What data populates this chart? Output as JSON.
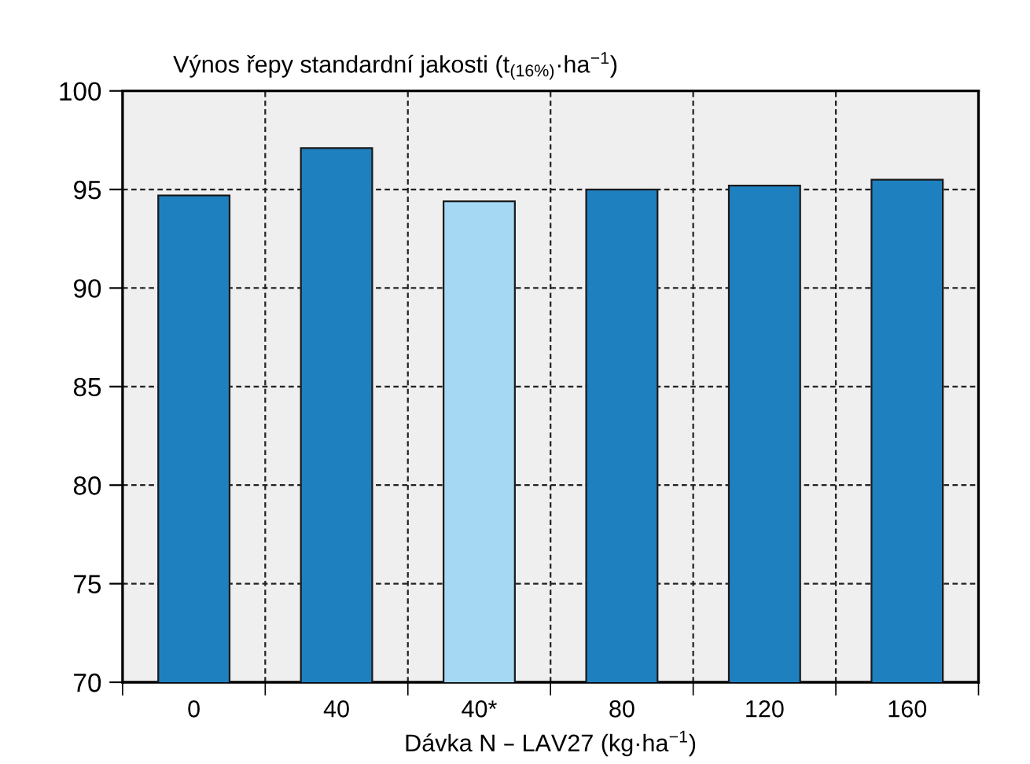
{
  "chart_data": {
    "type": "bar",
    "ylabel": "Výnos řepy standardní jakosti (t$_{(16%)}$·ha$^{−1}$)",
    "xlabel": "Dávka N – LAV27 (kg·ha$^{−1}$)",
    "categories": [
      "0",
      "40",
      "40*",
      "80",
      "120",
      "160"
    ],
    "values": [
      94.7,
      97.1,
      94.4,
      95.0,
      95.2,
      95.5
    ],
    "colors": [
      "#1f80c0",
      "#1f80c0",
      "#a5d9f3",
      "#1f80c0",
      "#1f80c0",
      "#1f80c0"
    ],
    "ylim": [
      70,
      100
    ],
    "yticks": [
      70,
      75,
      80,
      85,
      90,
      95,
      100
    ],
    "grid": true
  }
}
